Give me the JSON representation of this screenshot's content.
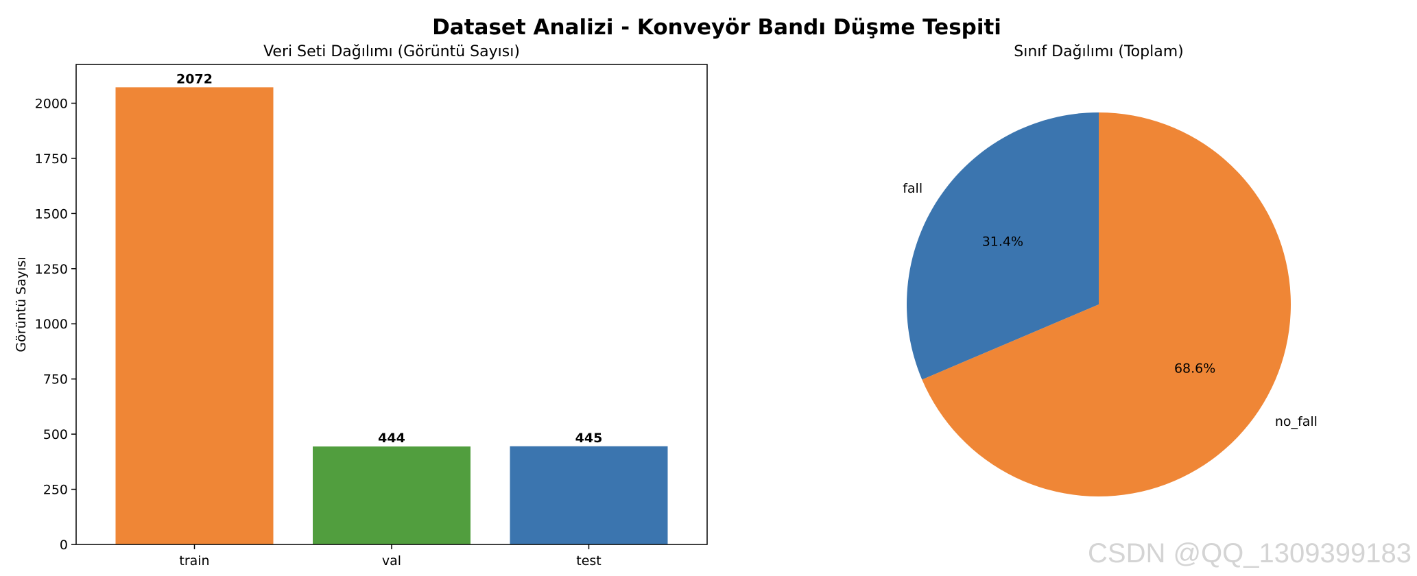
{
  "title": "Dataset Analizi - Konveyör Bandı Düşme Tespiti",
  "watermark": "CSDN @QQ_1309399183",
  "colors": {
    "orange": "#EF8636",
    "green": "#519E3E",
    "blue": "#3B75AF"
  },
  "chart_data": [
    {
      "type": "bar",
      "title": "Veri Seti Dağılımı (Görüntü Sayısı)",
      "xlabel": "",
      "ylabel": "Görüntü Sayısı",
      "categories": [
        "train",
        "val",
        "test"
      ],
      "values": [
        2072,
        444,
        445
      ],
      "data_labels": [
        "2072",
        "444",
        "445"
      ],
      "bar_colors": [
        "#EF8636",
        "#519E3E",
        "#3B75AF"
      ],
      "ylim": [
        0,
        2175.6
      ],
      "yticks": [
        0,
        250,
        500,
        750,
        1000,
        1250,
        1500,
        1750,
        2000
      ],
      "grid": false
    },
    {
      "type": "pie",
      "title": "Sınıf Dağılımı (Toplam)",
      "labels": [
        "fall",
        "no_fall"
      ],
      "values": [
        31.4,
        68.6
      ],
      "pct_labels": [
        "31.4%",
        "68.6%"
      ],
      "colors": [
        "#3B75AF",
        "#EF8636"
      ],
      "startangle": 90
    }
  ]
}
